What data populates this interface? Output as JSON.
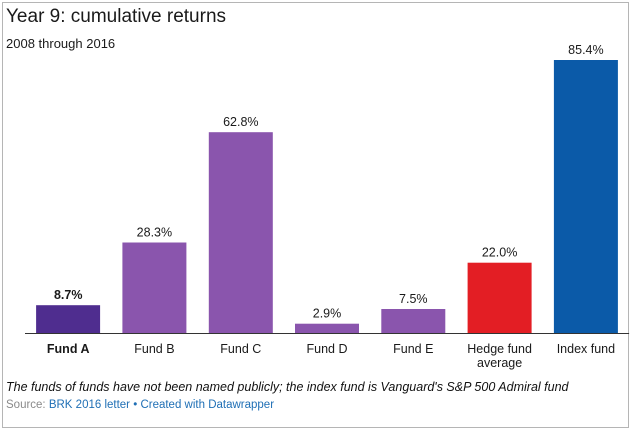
{
  "chart_data": {
    "type": "bar",
    "title": "Year 9: cumulative returns",
    "subtitle": "2008 through 2016",
    "categories": [
      "Fund A",
      "Fund B",
      "Fund C",
      "Fund D",
      "Fund E",
      "Hedge fund average",
      "Index fund"
    ],
    "category_lines": [
      [
        "Fund A"
      ],
      [
        "Fund B"
      ],
      [
        "Fund C"
      ],
      [
        "Fund D"
      ],
      [
        "Fund E"
      ],
      [
        "Hedge fund",
        "average"
      ],
      [
        "Index fund"
      ]
    ],
    "values": [
      8.7,
      28.3,
      62.8,
      2.9,
      7.5,
      22.0,
      85.4
    ],
    "value_labels": [
      "8.7%",
      "28.3%",
      "62.8%",
      "2.9%",
      "7.5%",
      "22.0%",
      "85.4%"
    ],
    "colors": [
      "#4f2d8f",
      "#8a55ad",
      "#8a55ad",
      "#8a55ad",
      "#8a55ad",
      "#e31e24",
      "#0b5aa8"
    ],
    "highlighted": [
      true,
      false,
      false,
      false,
      false,
      false,
      false
    ],
    "ylim": [
      0,
      85.4
    ],
    "xlabel": "",
    "ylabel": "",
    "grid": false,
    "legend": "none"
  },
  "footer": {
    "note": "The funds of funds have not been named publicly; the index fund is Vanguard's S&P 500 Admiral fund",
    "source_prefix": "Source: ",
    "source_text": "BRK 2016 letter",
    "separator": " • ",
    "created_with": "Created with Datawrapper"
  }
}
